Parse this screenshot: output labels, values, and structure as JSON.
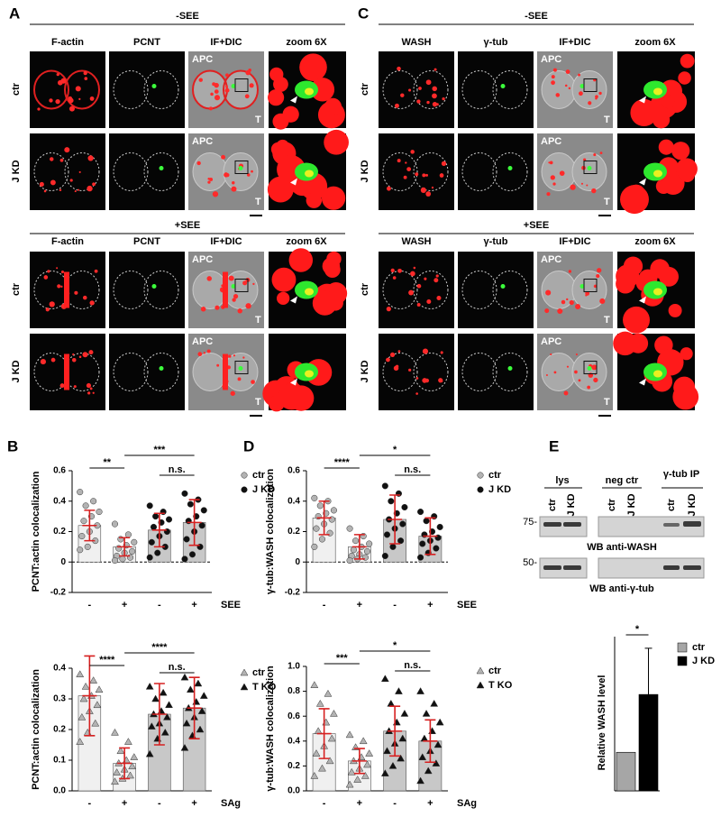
{
  "panels": {
    "A": {
      "label": "A",
      "sections": [
        {
          "title": "-SEE",
          "columns": [
            "F-actin",
            "PCNT",
            "IF+DIC",
            "zoom 6X"
          ],
          "rows": [
            "ctr",
            "J KD"
          ]
        },
        {
          "title": "+SEE",
          "columns": [
            "F-actin",
            "PCNT",
            "IF+DIC",
            "zoom 6X"
          ],
          "rows": [
            "ctr",
            "J KD"
          ]
        }
      ]
    },
    "C": {
      "label": "C",
      "sections": [
        {
          "title": "-SEE",
          "columns": [
            "WASH",
            "γ-tub",
            "IF+DIC",
            "zoom 6X"
          ],
          "rows": [
            "ctr",
            "J KD"
          ]
        },
        {
          "title": "+SEE",
          "columns": [
            "WASH",
            "γ-tub",
            "IF+DIC",
            "zoom 6X"
          ],
          "rows": [
            "ctr",
            "J KD"
          ]
        }
      ]
    }
  },
  "image_labels": {
    "apc": "APC",
    "t": "T"
  },
  "blot": {
    "label": "E",
    "groups": [
      "lys",
      "neg ctr",
      "γ-tub IP"
    ],
    "lanes": [
      "ctr",
      "J KD",
      "ctr",
      "J KD",
      "ctr",
      "J KD"
    ],
    "markers": [
      "75-",
      "50-"
    ],
    "captions": [
      "WB anti-WASH",
      "WB anti-γ-tub"
    ]
  },
  "chart_data": [
    {
      "type": "scatterbar",
      "panel": "B",
      "y_label": "PCNT:actin colocalization",
      "x_label": "SEE",
      "categories": [
        "-",
        "+",
        "-",
        "+"
      ],
      "ylim": [
        -0.2,
        0.6
      ],
      "yticks": [
        -0.2,
        0,
        0.2,
        0.4,
        0.6
      ],
      "significance": [
        "**",
        "***",
        "n.s."
      ],
      "series": [
        {
          "name": "ctr",
          "marker": "circle",
          "color": "#b3b3b3",
          "bar_color": "#f0f0f0",
          "values": [
            0.24,
            0.1,
            null,
            null
          ],
          "errors": [
            0.1,
            0.06,
            null,
            null
          ],
          "points": [
            [
              0.46,
              0.4,
              0.37,
              0.33,
              0.3,
              0.27,
              0.24,
              0.2,
              0.17,
              0.14,
              0.1,
              0.08
            ],
            [
              0.25,
              0.18,
              0.15,
              0.13,
              0.11,
              0.09,
              0.07,
              0.06,
              0.04,
              0.03,
              0.02,
              0.01
            ],
            null,
            null
          ]
        },
        {
          "name": "J KD",
          "marker": "circle",
          "color": "#111111",
          "bar_color": "#c8c8c8",
          "values": [
            null,
            null,
            0.21,
            0.26
          ],
          "errors": [
            null,
            null,
            0.11,
            0.15
          ],
          "points": [
            null,
            null,
            [
              0.37,
              0.33,
              0.3,
              0.28,
              0.26,
              0.23,
              0.2,
              0.17,
              0.13,
              0.1,
              0.06,
              0.03
            ],
            [
              0.45,
              0.41,
              0.38,
              0.34,
              0.3,
              0.27,
              0.24,
              0.2,
              0.15,
              0.1,
              0.05,
              0.02
            ]
          ]
        }
      ]
    },
    {
      "type": "scatterbar",
      "y_label": "PCNT:actin colocalization",
      "x_label": "SAg",
      "categories": [
        "-",
        "+",
        "-",
        "+"
      ],
      "ylim": [
        0,
        0.4
      ],
      "yticks": [
        {
          "value": 0,
          "label": "0.0"
        },
        0.1,
        0.2,
        0.3,
        0.4
      ],
      "significance": [
        "****",
        "****",
        "n.s."
      ],
      "series": [
        {
          "name": "ctr",
          "marker": "triangle",
          "color": "#b3b3b3",
          "bar_color": "#f0f0f0",
          "values": [
            0.31,
            0.09,
            null,
            null
          ],
          "errors": [
            0.13,
            0.05,
            null,
            null
          ],
          "points": [
            [
              0.38,
              0.36,
              0.34,
              0.33,
              0.31,
              0.3,
              0.28,
              0.26,
              0.24,
              0.22,
              0.19,
              0.16
            ],
            [
              0.19,
              0.16,
              0.13,
              0.11,
              0.1,
              0.09,
              0.08,
              0.07,
              0.06,
              0.05,
              0.04,
              0.03
            ],
            null,
            null
          ]
        },
        {
          "name": "T KO",
          "marker": "triangle",
          "color": "#111111",
          "bar_color": "#c8c8c8",
          "values": [
            null,
            null,
            0.25,
            0.27
          ],
          "errors": [
            null,
            null,
            0.1,
            0.1
          ],
          "points": [
            null,
            null,
            [
              0.34,
              0.32,
              0.3,
              0.28,
              0.26,
              0.25,
              0.24,
              0.22,
              0.21,
              0.19,
              0.17,
              0.12
            ],
            [
              0.37,
              0.35,
              0.33,
              0.31,
              0.29,
              0.27,
              0.26,
              0.24,
              0.22,
              0.2,
              0.18,
              0.14
            ]
          ]
        }
      ]
    },
    {
      "type": "scatterbar",
      "panel": "D",
      "y_label": "γ-tub:WASH colocalization",
      "x_label": "SEE",
      "categories": [
        "-",
        "+",
        "-",
        "+"
      ],
      "ylim": [
        -0.2,
        0.6
      ],
      "yticks": [
        -0.2,
        0,
        0.2,
        0.4,
        0.6
      ],
      "significance": [
        "****",
        "*",
        "n.s."
      ],
      "series": [
        {
          "name": "ctr",
          "marker": "circle",
          "color": "#b3b3b3",
          "bar_color": "#f0f0f0",
          "values": [
            0.29,
            0.1,
            null,
            null
          ],
          "errors": [
            0.11,
            0.08,
            null,
            null
          ],
          "points": [
            [
              0.42,
              0.4,
              0.37,
              0.34,
              0.32,
              0.3,
              0.28,
              0.25,
              0.22,
              0.19,
              0.15,
              0.1
            ],
            [
              0.22,
              0.17,
              0.14,
              0.12,
              0.1,
              0.08,
              0.07,
              0.05,
              0.04,
              0.03,
              0.02,
              0.01
            ],
            null,
            null
          ]
        },
        {
          "name": "J KD",
          "marker": "circle",
          "color": "#111111",
          "bar_color": "#c8c8c8",
          "values": [
            null,
            null,
            0.28,
            0.17
          ],
          "errors": [
            null,
            null,
            0.16,
            0.12
          ],
          "points": [
            null,
            null,
            [
              0.5,
              0.45,
              0.4,
              0.36,
              0.32,
              0.28,
              0.25,
              0.22,
              0.18,
              0.14,
              0.1,
              0.04
            ],
            [
              0.33,
              0.3,
              0.27,
              0.23,
              0.2,
              0.18,
              0.16,
              0.14,
              0.12,
              0.09,
              0.06,
              0.03
            ]
          ]
        }
      ]
    },
    {
      "type": "scatterbar",
      "y_label": "γ-tub:WASH colocalization",
      "x_label": "SAg",
      "categories": [
        "-",
        "+",
        "-",
        "+"
      ],
      "ylim": [
        0,
        1.0
      ],
      "yticks": [
        {
          "value": 0,
          "label": "0.0"
        },
        0.2,
        0.4,
        0.6,
        0.8,
        {
          "value": 1,
          "label": "1.0"
        }
      ],
      "significance": [
        "***",
        "*",
        "n.s."
      ],
      "series": [
        {
          "name": "ctr",
          "marker": "triangle",
          "color": "#b3b3b3",
          "bar_color": "#f0f0f0",
          "values": [
            0.46,
            0.24,
            null,
            null
          ],
          "errors": [
            0.2,
            0.1,
            null,
            null
          ],
          "points": [
            [
              0.85,
              0.78,
              0.7,
              0.62,
              0.55,
              0.48,
              0.42,
              0.36,
              0.3,
              0.24,
              0.18,
              0.12
            ],
            [
              0.45,
              0.4,
              0.35,
              0.3,
              0.27,
              0.24,
              0.21,
              0.18,
              0.15,
              0.12,
              0.09,
              0.05
            ],
            null,
            null
          ]
        },
        {
          "name": "T KO",
          "marker": "triangle",
          "color": "#111111",
          "bar_color": "#c8c8c8",
          "values": [
            null,
            null,
            0.48,
            0.4
          ],
          "errors": [
            null,
            null,
            0.2,
            0.17
          ],
          "points": [
            null,
            null,
            [
              0.9,
              0.8,
              0.7,
              0.62,
              0.55,
              0.48,
              0.42,
              0.38,
              0.32,
              0.26,
              0.2,
              0.14
            ],
            [
              0.8,
              0.7,
              0.62,
              0.55,
              0.48,
              0.42,
              0.37,
              0.32,
              0.27,
              0.22,
              0.16,
              0.08
            ]
          ]
        }
      ]
    },
    {
      "type": "bar",
      "y_label": "Relative WASH level",
      "categories": [
        null,
        null
      ],
      "ylim": [
        0,
        4
      ],
      "significance": [
        "*"
      ],
      "series": [
        {
          "name": "ctr",
          "color": "#a6a6a6",
          "values": [
            1.0,
            null
          ],
          "errors": [
            null,
            null
          ]
        },
        {
          "name": "J KD",
          "color": "#000000",
          "values": [
            null,
            2.5
          ],
          "errors": [
            null,
            1.2
          ]
        }
      ]
    }
  ]
}
